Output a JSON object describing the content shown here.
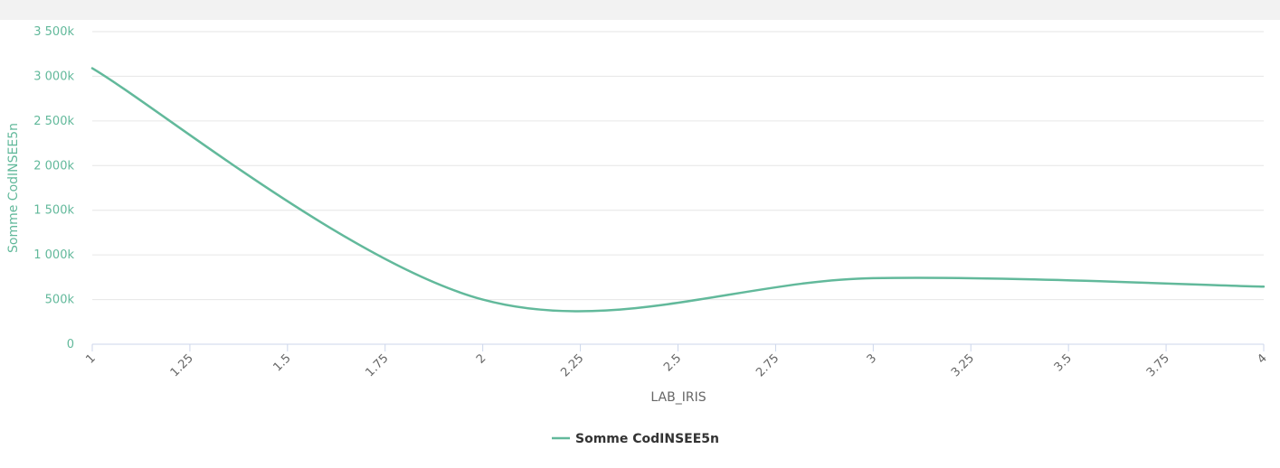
{
  "chart_data": {
    "type": "line",
    "xlabel": "LAB_IRIS",
    "ylabel": "Somme CodINSEE5n",
    "x_ticks": [
      "1",
      "1.25",
      "1.5",
      "1.75",
      "2",
      "2.25",
      "2.5",
      "2.75",
      "3",
      "3.25",
      "3.5",
      "3.75",
      "4"
    ],
    "y_ticks": [
      "0",
      "500k",
      "1 000k",
      "1 500k",
      "2 000k",
      "2 500k",
      "3 000k",
      "3 500k"
    ],
    "xlim": [
      1,
      4
    ],
    "ylim": [
      0,
      3500000
    ],
    "grid": true,
    "legend": "bottom-center",
    "series": [
      {
        "name": "Somme CodINSEE5n",
        "color": "#62b99b",
        "x": [
          1,
          2,
          3,
          4
        ],
        "y": [
          3090000,
          500000,
          740000,
          645000
        ]
      }
    ]
  },
  "colors": {
    "series": "#62b99b",
    "grid": "#e6e6e6",
    "axis": "#ccd6eb",
    "top_strip": "#f2f2f2"
  }
}
